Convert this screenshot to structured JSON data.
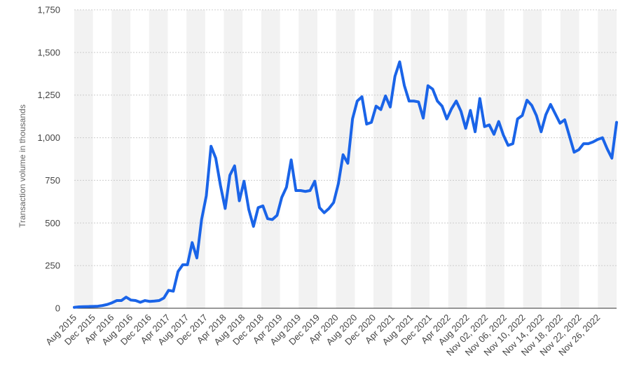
{
  "chart_data": {
    "type": "line",
    "title": "",
    "xlabel": "",
    "ylabel": "Transaction volume in thousands",
    "ylim": [
      0,
      1750
    ],
    "yticks": [
      "0",
      "250",
      "500",
      "750",
      "1,000",
      "1,250",
      "1,500",
      "1,750"
    ],
    "grid": "horizontal dotted",
    "colors": {
      "line": "#1a64e8",
      "band": "#f2f2f2",
      "grid": "#cccccc"
    },
    "x_tick_labels": [
      "Aug 2015",
      "Dec 2015",
      "Apr 2016",
      "Aug 2016",
      "Dec 2016",
      "Apr 2017",
      "Aug 2017",
      "Dec 2017",
      "Apr 2018",
      "Aug 2018",
      "Dec 2018",
      "Apr 2019",
      "Aug 2019",
      "Dec 2019",
      "Apr 2020",
      "Aug 2020",
      "Dec 2020",
      "Apr 2021",
      "Aug 2021",
      "Dec 2021",
      "Apr 2022",
      "Aug 2022",
      "Nov 02, 2022",
      "Nov 06, 2022",
      "Nov 10, 2022",
      "Nov 14, 2022",
      "Nov 18, 2022",
      "Nov 22, 2022",
      "Nov 26, 2022"
    ],
    "series": [
      {
        "values": [
          5,
          8,
          9,
          10,
          11,
          12,
          16,
          22,
          32,
          45,
          45,
          65,
          48,
          45,
          35,
          45,
          40,
          42,
          45,
          60,
          105,
          100,
          215,
          255,
          255,
          385,
          295,
          520,
          660,
          950,
          880,
          720,
          585,
          780,
          835,
          630,
          745,
          580,
          480,
          590,
          600,
          525,
          520,
          545,
          650,
          710,
          870,
          690,
          690,
          685,
          690,
          745,
          590,
          560,
          585,
          620,
          730,
          900,
          850,
          1110,
          1215,
          1240,
          1080,
          1090,
          1185,
          1165,
          1245,
          1180,
          1360,
          1445,
          1305,
          1215,
          1215,
          1210,
          1115,
          1305,
          1285,
          1215,
          1185,
          1110,
          1170,
          1215,
          1155,
          1055,
          1160,
          1035,
          1230,
          1065,
          1075,
          1020,
          1095,
          1015,
          955,
          965,
          1110,
          1130,
          1220,
          1190,
          1130,
          1035,
          1135,
          1195,
          1140,
          1085,
          1105,
          1010,
          915,
          930,
          965,
          965,
          975,
          990,
          1000,
          935,
          880,
          1090
        ]
      }
    ]
  }
}
